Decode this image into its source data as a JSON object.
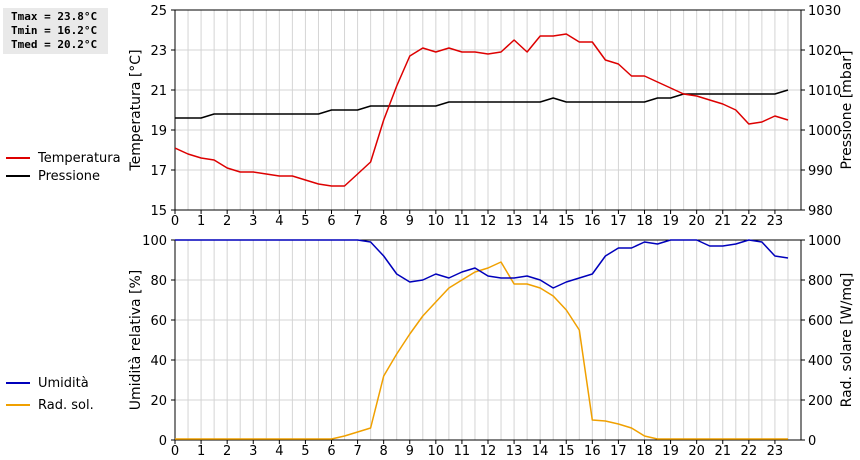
{
  "stats": {
    "tmax": "Tmax = 23.8°C",
    "tmin": "Tmin = 16.2°C",
    "tmed": "Tmed = 20.2°C"
  },
  "chart_data": [
    {
      "type": "line",
      "ylabel": "Temperatura [°C]",
      "y2label": "Pressione [mbar]",
      "ylim": [
        15,
        25
      ],
      "y2lim": [
        980,
        1030
      ],
      "yticks": [
        15,
        17,
        19,
        21,
        23,
        25
      ],
      "y2ticks": [
        980,
        990,
        1000,
        1010,
        1020,
        1030
      ],
      "xlim": [
        0,
        24
      ],
      "xticks": [
        "0",
        "1",
        "2",
        "3",
        "4",
        "5",
        "6",
        "7",
        "8",
        "9",
        "10",
        "11",
        "12",
        "13",
        "14",
        "15",
        "16",
        "17",
        "18",
        "19",
        "20",
        "21",
        "22",
        "23"
      ],
      "grid": true,
      "colors": {
        "temperatura": "#dd0000",
        "pressione": "#000000"
      },
      "series": [
        {
          "name": "Temperatura",
          "axis": "left",
          "x": [
            0,
            0.5,
            1,
            1.5,
            2,
            2.5,
            3,
            3.5,
            4,
            4.5,
            5,
            5.5,
            6,
            6.5,
            7,
            7.5,
            8,
            8.5,
            9,
            9.5,
            10,
            10.5,
            11,
            11.5,
            12,
            12.5,
            13,
            13.5,
            14,
            14.5,
            15,
            15.5,
            16,
            16.5,
            17,
            17.5,
            18,
            18.5,
            19,
            19.5,
            20,
            20.5,
            21,
            21.5,
            22,
            22.5,
            23,
            23.5
          ],
          "values": [
            18.1,
            17.8,
            17.6,
            17.5,
            17.1,
            16.9,
            16.9,
            16.8,
            16.7,
            16.7,
            16.5,
            16.3,
            16.2,
            16.2,
            16.8,
            17.4,
            19.5,
            21.2,
            22.7,
            23.1,
            22.9,
            23.1,
            22.9,
            22.9,
            22.8,
            22.9,
            23.5,
            22.9,
            23.7,
            23.7,
            23.8,
            23.4,
            23.4,
            22.5,
            22.3,
            21.7,
            21.7,
            21.4,
            21.1,
            20.8,
            20.7,
            20.5,
            20.3,
            20.0,
            19.3,
            19.4,
            19.7,
            19.5
          ]
        },
        {
          "name": "Pressione",
          "axis": "right",
          "x": [
            0,
            1,
            1.5,
            5.5,
            6,
            7,
            7.5,
            10,
            10.5,
            14,
            14.5,
            15,
            18,
            18.5,
            19,
            19.5,
            20,
            22,
            23,
            23.5
          ],
          "values": [
            1003,
            1003,
            1004,
            1004,
            1005,
            1005,
            1006,
            1006,
            1007,
            1007,
            1008,
            1007,
            1007,
            1008,
            1008,
            1009,
            1009,
            1009,
            1009,
            1010
          ]
        }
      ]
    },
    {
      "type": "line",
      "ylabel": "Umidità relativa [%]",
      "y2label": "Rad. solare [W/mq]",
      "ylim": [
        0,
        100
      ],
      "y2lim": [
        0,
        1000
      ],
      "yticks": [
        0,
        20,
        40,
        60,
        80,
        100
      ],
      "y2ticks": [
        0,
        200,
        400,
        600,
        800,
        1000
      ],
      "xlim": [
        0,
        24
      ],
      "xticks": [
        "0",
        "1",
        "2",
        "3",
        "4",
        "5",
        "6",
        "7",
        "8",
        "9",
        "10",
        "11",
        "12",
        "13",
        "14",
        "15",
        "16",
        "17",
        "18",
        "19",
        "20",
        "21",
        "22",
        "23"
      ],
      "grid": true,
      "colors": {
        "umidita": "#0000bb",
        "radsol": "#f0a000"
      },
      "series": [
        {
          "name": "Umidità",
          "axis": "left",
          "x": [
            0,
            7,
            7.5,
            8,
            8.5,
            9,
            9.5,
            10,
            10.5,
            11,
            11.5,
            12,
            12.5,
            13,
            13.5,
            14,
            14.5,
            15,
            15.5,
            16,
            16.5,
            17,
            17.5,
            18,
            18.5,
            19,
            19.5,
            20,
            20.5,
            21,
            21.5,
            22,
            22.5,
            23,
            23.5
          ],
          "values": [
            100,
            100,
            99,
            92,
            83,
            79,
            80,
            83,
            81,
            84,
            86,
            82,
            81,
            81,
            82,
            80,
            76,
            79,
            81,
            83,
            92,
            96,
            96,
            99,
            98,
            100,
            100,
            100,
            97,
            97,
            98,
            100,
            99,
            92,
            91
          ]
        },
        {
          "name": "Rad. sol.",
          "axis": "right",
          "x": [
            0,
            6,
            6.5,
            7,
            7.5,
            8,
            8.5,
            9,
            9.5,
            10,
            10.5,
            11,
            11.5,
            12,
            12.5,
            13,
            13.5,
            14,
            14.5,
            15,
            15.5,
            16,
            16.5,
            17,
            17.5,
            18,
            18.5,
            19,
            23.5
          ],
          "values": [
            5,
            5,
            20,
            40,
            60,
            320,
            430,
            530,
            620,
            690,
            760,
            800,
            840,
            860,
            890,
            780,
            780,
            760,
            720,
            650,
            550,
            100,
            95,
            80,
            60,
            20,
            5,
            5,
            5
          ]
        }
      ]
    }
  ]
}
